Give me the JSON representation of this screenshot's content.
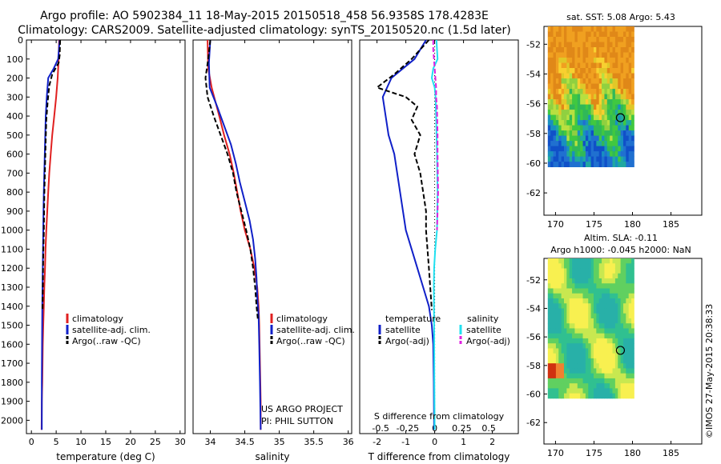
{
  "header": {
    "title_line1": "Argo profile: AO 5902384_11 18-May-2015 20150518_458 56.9358S 178.4283E",
    "title_line2": "Climatology: CARS2009. Satellite-adjusted climatology: synTS_20150520.nc (1.5d later)"
  },
  "colors": {
    "climatology": "#e02020",
    "satellite": "#1020c8",
    "argo": "#000000",
    "salinity_sat": "#20e0f0",
    "salinity_argo": "#e020e0"
  },
  "chart_data": [
    {
      "type": "line",
      "id": "temperature",
      "xlabel": "temperature (deg C)",
      "ylabel": "",
      "xlim": [
        -1,
        31
      ],
      "ylim": [
        2070,
        0
      ],
      "xticks": [
        0,
        5,
        10,
        15,
        20,
        25,
        30
      ],
      "yticks": [
        0,
        100,
        200,
        300,
        400,
        500,
        600,
        700,
        800,
        900,
        1000,
        1100,
        1200,
        1300,
        1400,
        1500,
        1600,
        1700,
        1800,
        1900,
        2000
      ],
      "legend": [
        "climatology",
        "satellite-adj. clim.",
        "Argo(..raw -QC)"
      ],
      "legend_position": "lower-middle",
      "series": [
        {
          "name": "climatology",
          "color_key": "climatology",
          "dash": false,
          "x": [
            5.6,
            5.5,
            5.3,
            5.0,
            4.6,
            4.2,
            3.9,
            3.6,
            3.4,
            3.2,
            3.0,
            2.85,
            2.75,
            2.6,
            2.5,
            2.4,
            2.3,
            2.25,
            2.2,
            2.1,
            2.05
          ],
          "y": [
            0,
            100,
            200,
            300,
            400,
            500,
            600,
            700,
            800,
            900,
            1000,
            1100,
            1200,
            1300,
            1400,
            1500,
            1600,
            1700,
            1800,
            1900,
            2050
          ]
        },
        {
          "name": "satellite-adj. clim.",
          "color_key": "satellite",
          "dash": false,
          "x": [
            5.7,
            5.4,
            4.5,
            3.4,
            3.1,
            2.9,
            2.8,
            2.7,
            2.6,
            2.5,
            2.45,
            2.4,
            2.35,
            2.3,
            2.25,
            2.2,
            2.15,
            2.1,
            2.1
          ],
          "y": [
            0,
            100,
            150,
            200,
            300,
            400,
            500,
            600,
            700,
            800,
            900,
            1000,
            1100,
            1200,
            1300,
            1400,
            1600,
            1800,
            2050
          ]
        },
        {
          "name": "Argo(..raw -QC)",
          "color_key": "argo",
          "dash": true,
          "x": [
            5.8,
            5.7,
            5.5,
            4.2,
            3.6,
            3.3,
            3.0,
            2.9,
            2.8,
            2.7,
            2.6,
            2.55,
            2.5,
            2.4,
            2.35,
            2.3,
            2.25
          ],
          "y": [
            0,
            80,
            120,
            180,
            240,
            320,
            420,
            520,
            620,
            720,
            820,
            920,
            1020,
            1120,
            1220,
            1320,
            1420
          ]
        }
      ]
    },
    {
      "type": "line",
      "id": "salinity",
      "xlabel": "salinity",
      "ylabel": "",
      "xlim": [
        33.75,
        36.05
      ],
      "ylim": [
        2070,
        0
      ],
      "xticks": [
        34,
        34.5,
        35,
        35.5,
        36
      ],
      "legend": [
        "climatology",
        "satellite-adj. clim.",
        "Argo(..raw -QC)"
      ],
      "legend_position": "lower-right",
      "annotations": [
        "US ARGO PROJECT",
        "PI: PHIL SUTTON"
      ],
      "series": [
        {
          "name": "climatology",
          "color_key": "climatology",
          "dash": false,
          "x": [
            33.96,
            33.97,
            34.02,
            34.13,
            34.2,
            34.28,
            34.34,
            34.39,
            34.44,
            34.5,
            34.58,
            34.64,
            34.68,
            34.7,
            34.71,
            34.72,
            34.73,
            34.73
          ],
          "y": [
            0,
            150,
            250,
            400,
            500,
            600,
            700,
            800,
            900,
            1000,
            1100,
            1200,
            1300,
            1400,
            1500,
            1700,
            1900,
            2050
          ]
        },
        {
          "name": "satellite-adj. clim.",
          "color_key": "satellite",
          "dash": false,
          "x": [
            34.0,
            33.98,
            33.99,
            34.1,
            34.2,
            34.3,
            34.37,
            34.43,
            34.5,
            34.57,
            34.62,
            34.65,
            34.67,
            34.68,
            34.7,
            34.71,
            34.72,
            34.73
          ],
          "y": [
            0,
            120,
            250,
            350,
            450,
            550,
            650,
            750,
            850,
            950,
            1050,
            1150,
            1250,
            1350,
            1450,
            1600,
            1800,
            2050
          ]
        },
        {
          "name": "Argo(..raw -QC)",
          "color_key": "argo",
          "dash": true,
          "x": [
            34.0,
            33.97,
            33.93,
            33.96,
            34.05,
            34.15,
            34.25,
            34.33,
            34.38,
            34.45,
            34.52,
            34.58,
            34.62,
            34.65,
            34.67,
            34.69
          ],
          "y": [
            0,
            100,
            200,
            300,
            400,
            500,
            600,
            700,
            800,
            900,
            1000,
            1100,
            1200,
            1300,
            1400,
            1470
          ]
        }
      ]
    },
    {
      "type": "line",
      "id": "differences",
      "xlabel": "T difference from climatology",
      "xlabel_top": "S difference from climatology",
      "ylabel": "",
      "xlim": [
        -2.6,
        2.9
      ],
      "ylim": [
        2070,
        0
      ],
      "xticks": [
        -2,
        -1,
        0,
        1,
        2
      ],
      "s_ticks": [
        -0.5,
        -0.25,
        0,
        0.25,
        0.5
      ],
      "legend_temperature_title": "temperature",
      "legend_salinity_title": "salinity",
      "legend": [
        "satellite",
        "Argo(-adj)",
        "satellite",
        "Argo(-adj)"
      ],
      "legend_position": "lower-middle",
      "series": [
        {
          "name": "temperature satellite",
          "color_key": "satellite",
          "dash": false,
          "x": [
            -0.3,
            -0.7,
            -1.5,
            -1.8,
            -1.7,
            -1.6,
            -1.4,
            -1.3,
            -1.2,
            -1.1,
            -1.0,
            -0.8,
            -0.6,
            -0.4,
            -0.2,
            -0.1,
            -0.05,
            -0.03,
            -0.02
          ],
          "y": [
            0,
            100,
            200,
            300,
            400,
            500,
            600,
            700,
            800,
            900,
            1000,
            1100,
            1200,
            1300,
            1400,
            1500,
            1600,
            1800,
            2050
          ]
        },
        {
          "name": "temperature Argo(-adj)",
          "color_key": "argo",
          "dash": true,
          "x": [
            -0.2,
            -0.8,
            -1.4,
            -2.0,
            -1.0,
            -0.6,
            -0.8,
            -0.5,
            -0.7,
            -0.5,
            -0.4,
            -0.3,
            -0.3,
            -0.2,
            -0.1
          ],
          "y": [
            0,
            100,
            180,
            250,
            300,
            350,
            420,
            500,
            600,
            700,
            800,
            900,
            1000,
            1200,
            1420
          ]
        },
        {
          "name": "salinity satellite",
          "color_key": "salinity_sat",
          "dash": false,
          "x": [
            0.06,
            0.1,
            -0.05,
            -0.1,
            0.0,
            0.03,
            0.05,
            0.08,
            0.1,
            0.08,
            0.02,
            -0.02,
            -0.03,
            -0.02,
            -0.01,
            0.0
          ],
          "y": [
            0,
            100,
            150,
            200,
            250,
            300,
            400,
            600,
            800,
            1000,
            1100,
            1200,
            1300,
            1500,
            1800,
            2050
          ]
        },
        {
          "name": "salinity Argo(-adj)",
          "color_key": "salinity_argo",
          "dash": true,
          "x": [
            -0.05,
            -0.05,
            0.05,
            0.05,
            0.08,
            0.1,
            0.1,
            0.12,
            0.1,
            0.08
          ],
          "y": [
            0,
            50,
            250,
            300,
            350,
            500,
            600,
            800,
            900,
            1000
          ]
        }
      ]
    },
    {
      "type": "heatmap",
      "id": "sst_map",
      "title": "sat. SST: 5.08 Argo: 5.43",
      "xlim": [
        168.5,
        189
      ],
      "ylim": [
        -63.5,
        -50.8
      ],
      "xticks": [
        170,
        175,
        180,
        185
      ],
      "yticks": [
        -52,
        -54,
        -56,
        -58,
        -60,
        -62
      ],
      "data_extent": {
        "lon": [
          169,
          180
        ],
        "lat": [
          -60,
          -50.8
        ]
      },
      "marker": {
        "lon": 178.43,
        "lat": -56.94
      }
    },
    {
      "type": "heatmap",
      "id": "sla_map",
      "title": "Altim. SLA: -0.11",
      "subtitle": "Argo h1000: -0.045 h2000: NaN",
      "xlim": [
        168.5,
        189
      ],
      "ylim": [
        -63.5,
        -50.5
      ],
      "xticks": [
        170,
        175,
        180,
        185
      ],
      "yticks": [
        -52,
        -54,
        -56,
        -58,
        -60,
        -62
      ],
      "data_extent": {
        "lon": [
          169,
          180
        ],
        "lat": [
          -60,
          -50.5
        ]
      },
      "marker": {
        "lon": 178.43,
        "lat": -56.94
      }
    }
  ],
  "footer": {
    "watermark": "©IMOS 27-May-2015 20:38:33"
  }
}
